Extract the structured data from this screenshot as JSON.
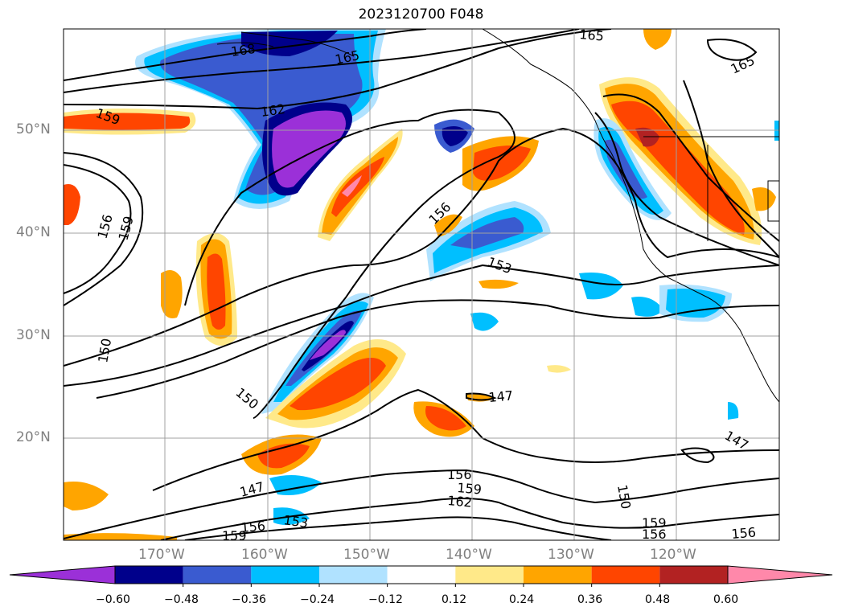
{
  "title": "2023120700 F048",
  "lat_labels": [
    "50°N",
    "40°N",
    "30°N",
    "20°N"
  ],
  "lon_labels": [
    "170°W",
    "160°W",
    "150°W",
    "140°W",
    "130°W",
    "120°W"
  ],
  "contour_labels": [
    "168",
    "165",
    "165",
    "165",
    "162",
    "159",
    "156",
    "159",
    "156",
    "153",
    "150",
    "150",
    "147",
    "147",
    "147",
    "156",
    "159",
    "162",
    "150",
    "153",
    "156",
    "159",
    "156",
    "159",
    "156"
  ],
  "colorbar": {
    "ticks": [
      "−0.60",
      "−0.48",
      "−0.36",
      "−0.24",
      "−0.12",
      "0.12",
      "0.24",
      "0.36",
      "0.48",
      "0.60"
    ],
    "colors": [
      "#9b30d8",
      "#00008b",
      "#3a5bd0",
      "#00bfff",
      "#b0e2ff",
      "#ffffff",
      "#ffe989",
      "#ffa500",
      "#ff4500",
      "#b22222",
      "#ff88aa"
    ]
  }
}
